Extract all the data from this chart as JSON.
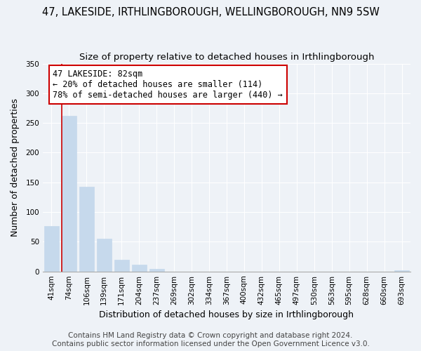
{
  "title": "47, LAKESIDE, IRTHLINGBOROUGH, WELLINGBOROUGH, NN9 5SW",
  "subtitle": "Size of property relative to detached houses in Irthlingborough",
  "xlabel": "Distribution of detached houses by size in Irthlingborough",
  "ylabel": "Number of detached properties",
  "bar_labels": [
    "41sqm",
    "74sqm",
    "106sqm",
    "139sqm",
    "171sqm",
    "204sqm",
    "237sqm",
    "269sqm",
    "302sqm",
    "334sqm",
    "367sqm",
    "400sqm",
    "432sqm",
    "465sqm",
    "497sqm",
    "530sqm",
    "563sqm",
    "595sqm",
    "628sqm",
    "660sqm",
    "693sqm"
  ],
  "bar_values": [
    76,
    262,
    143,
    55,
    20,
    11,
    4,
    0,
    0,
    0,
    0,
    0,
    0,
    0,
    0,
    0,
    0,
    0,
    0,
    0,
    2
  ],
  "bar_color": "#c6d9ec",
  "ylim": [
    0,
    350
  ],
  "yticks": [
    0,
    50,
    100,
    150,
    200,
    250,
    300,
    350
  ],
  "marker_label": "47 LAKESIDE: 82sqm",
  "annotation_line1": "← 20% of detached houses are smaller (114)",
  "annotation_line2": "78% of semi-detached houses are larger (440) →",
  "marker_color": "#cc0000",
  "footer_line1": "Contains HM Land Registry data © Crown copyright and database right 2024.",
  "footer_line2": "Contains public sector information licensed under the Open Government Licence v3.0.",
  "background_color": "#eef2f7",
  "plot_background": "#eef2f7",
  "grid_color": "#ffffff",
  "title_fontsize": 10.5,
  "subtitle_fontsize": 9.5,
  "axis_label_fontsize": 9,
  "tick_fontsize": 7.5,
  "footer_fontsize": 7.5
}
